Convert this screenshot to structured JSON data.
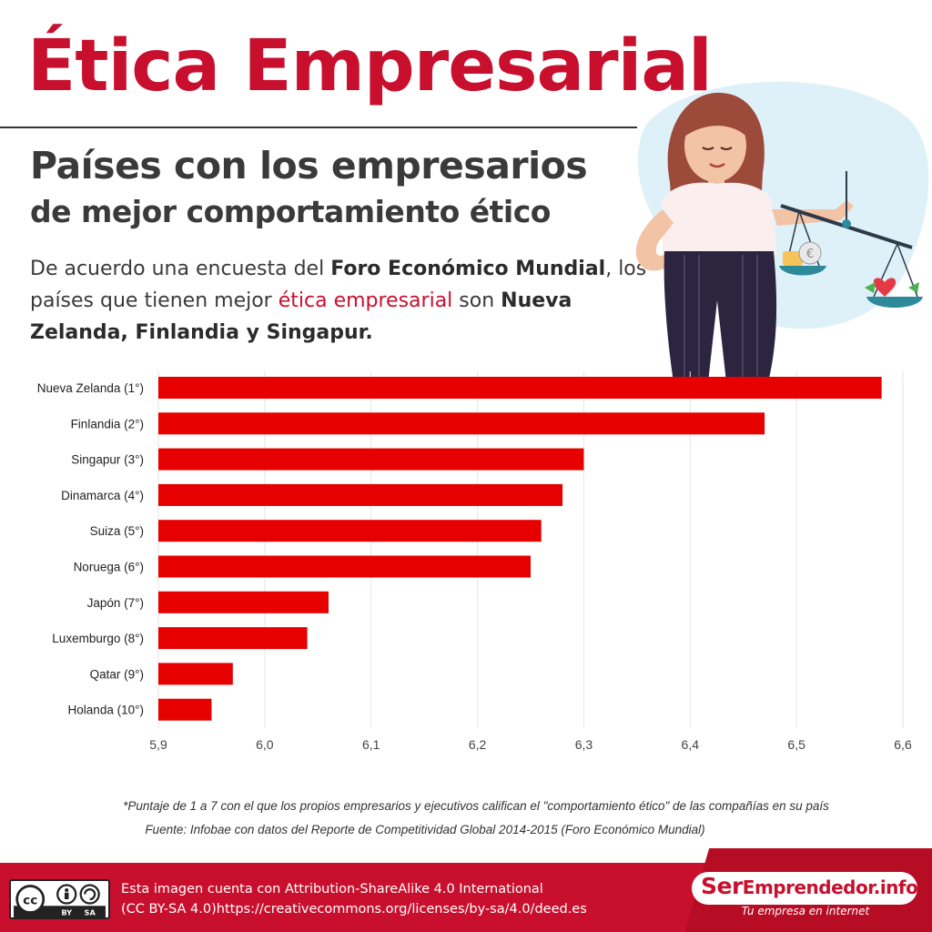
{
  "header": {
    "title": "Ética Empresarial",
    "subtitle_line1": "Países con los empresarios",
    "subtitle_line2": "de mejor comportamiento ético"
  },
  "intro": {
    "p1": "De acuerdo una encuesta del ",
    "b1": "Foro Económico Mundial",
    "p2": ", los países que tienen mejor ",
    "red": "ética empresarial",
    "p3": " son ",
    "b2": "Nueva Zelanda, Finlandia y Singapur."
  },
  "illustration": {
    "icon": "businesswoman-with-scales-icon",
    "coin_symbol": "€"
  },
  "colors": {
    "accent": "#c8102e",
    "bar": "#e60000",
    "text": "#3a3a3a",
    "grid": "#e6e6e6"
  },
  "chart_data": {
    "type": "bar",
    "orientation": "horizontal",
    "categories": [
      "Nueva Zelanda (1°)",
      "Finlandia (2°)",
      "Singapur (3°)",
      "Dinamarca (4°)",
      "Suiza (5°)",
      "Noruega (6°)",
      "Japón (7°)",
      "Luxemburgo (8°)",
      "Qatar (9°)",
      "Holanda (10°)"
    ],
    "values": [
      6.58,
      6.47,
      6.3,
      6.28,
      6.26,
      6.25,
      6.06,
      6.04,
      5.97,
      5.95
    ],
    "xlim": [
      5.9,
      6.6
    ],
    "xticks": [
      5.9,
      6.0,
      6.1,
      6.2,
      6.3,
      6.4,
      6.5,
      6.6
    ],
    "xtick_labels": [
      "5,9",
      "6,0",
      "6,1",
      "6,2",
      "6,3",
      "6,4",
      "6,5",
      "6,6"
    ],
    "grid": true,
    "legend": "none",
    "color": "#e60000"
  },
  "footnotes": {
    "note": "*Puntaje de 1 a 7 con el que los propios empresarios y ejecutivos califican el \"comportamiento ético\" de las  compañías en su país",
    "source": "Fuente: Infobae con datos del Reporte de Competitividad Global 2014-2015 (Foro Económico Mundial)"
  },
  "footer": {
    "cc_icon": "creative-commons-by-sa-icon",
    "cc_labels": [
      "BY",
      "SA"
    ],
    "license_line1": "Esta imagen cuenta con Attribution-ShareAlike 4.0 International",
    "license_line2": "(CC BY-SA 4.0)https://creativecommons.org/licenses/by-sa/4.0/deed.es",
    "brand_ser": "Ser",
    "brand_rest": "Emprendedor.info",
    "tagline": "Tu empresa en internet"
  }
}
